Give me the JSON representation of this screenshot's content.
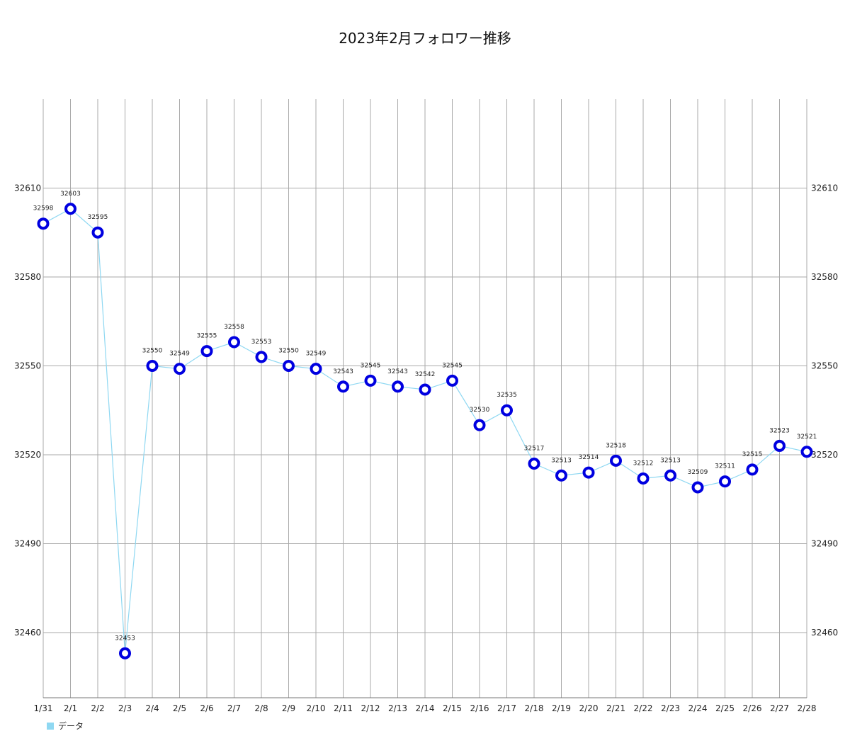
{
  "chart_data": {
    "type": "line",
    "title": "2023年2月フォロワー推移",
    "xlabel": "",
    "ylabel": "",
    "categories": [
      "1/31",
      "2/1",
      "2/2",
      "2/3",
      "2/4",
      "2/5",
      "2/6",
      "2/7",
      "2/8",
      "2/9",
      "2/10",
      "2/11",
      "2/12",
      "2/13",
      "2/14",
      "2/15",
      "2/16",
      "2/17",
      "2/18",
      "2/19",
      "2/20",
      "2/21",
      "2/22",
      "2/23",
      "2/24",
      "2/25",
      "2/26",
      "2/27",
      "2/28"
    ],
    "series": [
      {
        "name": "データ",
        "values": [
          32598,
          32603,
          32595,
          32453,
          32550,
          32549,
          32555,
          32558,
          32553,
          32550,
          32549,
          32543,
          32545,
          32543,
          32542,
          32545,
          32530,
          32535,
          32517,
          32513,
          32514,
          32518,
          32512,
          32513,
          32509,
          32511,
          32515,
          32523,
          32521
        ],
        "line_color": "#8fd8f2",
        "marker_color": "#0000e0"
      }
    ],
    "y_ticks": [
      32460,
      32490,
      32520,
      32550,
      32580,
      32610
    ],
    "ylim": [
      32438,
      32640
    ],
    "grid": true,
    "data_labels": true,
    "legend_position": "bottom-left",
    "y_axis_labels": "left-and-right"
  }
}
